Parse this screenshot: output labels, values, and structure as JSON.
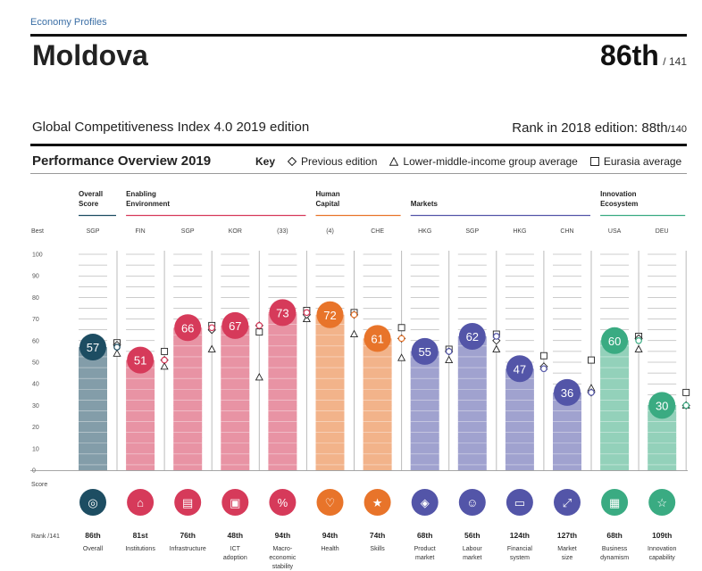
{
  "header": {
    "breadcrumb": "Economy Profiles",
    "country": "Moldova",
    "rank": "86th",
    "rank_total": "/ 141",
    "edition_title": "Global Competitiveness Index 4.0 2019 edition",
    "prev_rank_label": "Rank in 2018 edition: 88th",
    "prev_rank_total": "/140"
  },
  "overview": {
    "title": "Performance Overview 2019",
    "key_label": "Key",
    "key_items": [
      "Previous edition",
      "Lower-middle-income group average",
      "Eurasia average"
    ]
  },
  "labels": {
    "best": "Best",
    "score": "Score",
    "rank": "Rank /141"
  },
  "colors": {
    "overall": "#1d4d62",
    "enabling": "#d63a5a",
    "human": "#e8742a",
    "markets": "#5355a8",
    "innovation": "#3aab82"
  },
  "chart_data": {
    "type": "bar",
    "ylim": [
      0,
      100
    ],
    "yticks": [
      0,
      10,
      20,
      30,
      40,
      50,
      60,
      70,
      80,
      90,
      100
    ],
    "groups": [
      {
        "name": "Overall Score",
        "key": "overall",
        "start": 0,
        "end": 0
      },
      {
        "name": "Enabling Environment",
        "key": "enabling",
        "start": 1,
        "end": 4
      },
      {
        "name": "Human Capital",
        "key": "human",
        "start": 5,
        "end": 6
      },
      {
        "name": "Markets",
        "key": "markets",
        "start": 7,
        "end": 10
      },
      {
        "name": "Innovation Ecosystem",
        "key": "innovation",
        "start": 11,
        "end": 12
      }
    ],
    "pillars": [
      {
        "name": "Overall",
        "group": "overall",
        "best": "SGP",
        "score": 57,
        "rank": "86th",
        "icon": "overall-icon",
        "prev": 58,
        "lmi": 54,
        "eurasia": 59
      },
      {
        "name": "Institutions",
        "group": "enabling",
        "best": "FIN",
        "score": 51,
        "rank": "81st",
        "icon": "institutions-icon",
        "prev": 51,
        "lmi": 48,
        "eurasia": 55
      },
      {
        "name": "Infrastructure",
        "group": "enabling",
        "best": "SGP",
        "score": 66,
        "rank": "76th",
        "icon": "infrastructure-icon",
        "prev": 65,
        "lmi": 56,
        "eurasia": 67
      },
      {
        "name": "ICT adoption",
        "group": "enabling",
        "best": "KOR",
        "score": 67,
        "rank": "48th",
        "icon": "ict-icon",
        "prev": 67,
        "lmi": 43,
        "eurasia": 64
      },
      {
        "name": "Macro-economic stability",
        "group": "enabling",
        "best": "(33)",
        "score": 73,
        "rank": "94th",
        "icon": "macro-icon",
        "prev": 72,
        "lmi": 70,
        "eurasia": 74
      },
      {
        "name": "Health",
        "group": "human",
        "best": "(4)",
        "score": 72,
        "rank": "94th",
        "icon": "health-icon",
        "prev": 72,
        "lmi": 63,
        "eurasia": 73
      },
      {
        "name": "Skills",
        "group": "human",
        "best": "CHE",
        "score": 61,
        "rank": "74th",
        "icon": "skills-icon",
        "prev": 61,
        "lmi": 52,
        "eurasia": 66
      },
      {
        "name": "Product market",
        "group": "markets",
        "best": "HKG",
        "score": 55,
        "rank": "68th",
        "icon": "product-market-icon",
        "prev": 55,
        "lmi": 51,
        "eurasia": 56
      },
      {
        "name": "Labour market",
        "group": "markets",
        "best": "SGP",
        "score": 62,
        "rank": "56th",
        "icon": "labour-market-icon",
        "prev": 60,
        "lmi": 56,
        "eurasia": 63
      },
      {
        "name": "Financial system",
        "group": "markets",
        "best": "HKG",
        "score": 47,
        "rank": "124th",
        "icon": "financial-system-icon",
        "prev": 48,
        "lmi": 48,
        "eurasia": 53
      },
      {
        "name": "Market size",
        "group": "markets",
        "best": "CHN",
        "score": 36,
        "rank": "127th",
        "icon": "market-size-icon",
        "prev": 36,
        "lmi": 38,
        "eurasia": 51
      },
      {
        "name": "Business dynamism",
        "group": "innovation",
        "best": "USA",
        "score": 60,
        "rank": "68th",
        "icon": "business-dynamism-icon",
        "prev": 61,
        "lmi": 56,
        "eurasia": 62
      },
      {
        "name": "Innovation capability",
        "group": "innovation",
        "best": "DEU",
        "score": 30,
        "rank": "109th",
        "icon": "innovation-capability-icon",
        "prev": 30,
        "lmi": 30,
        "eurasia": 36
      }
    ]
  }
}
